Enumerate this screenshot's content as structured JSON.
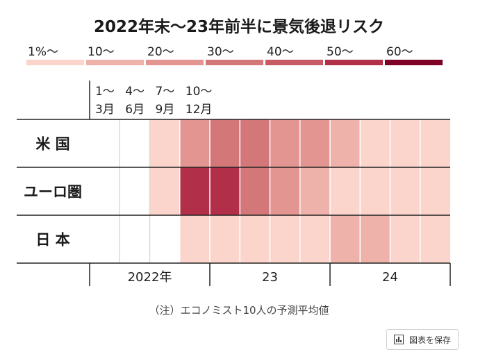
{
  "chart_data": {
    "type": "heatmap",
    "title": "2022年末～23年前半に景気後退リスク",
    "legend": {
      "labels": [
        "1%～",
        "10～",
        "20～",
        "30～",
        "40～",
        "50～",
        "60～"
      ],
      "colors": [
        "#fbd5cb",
        "#efb2aa",
        "#e39592",
        "#d47779",
        "#c85a66",
        "#b22f4a",
        "#7e0226"
      ]
    },
    "quarter_labels": [
      {
        "line1": "1～",
        "line2": "3月"
      },
      {
        "line1": "4～",
        "line2": "6月"
      },
      {
        "line1": "7～",
        "line2": "9月"
      },
      {
        "line1": "10～",
        "line2": "12月"
      }
    ],
    "rows": [
      "米 国",
      "ユーロ圏",
      "日 本"
    ],
    "quarters": [
      "2022Q1",
      "2022Q2",
      "2022Q3",
      "2022Q4",
      "2023Q1",
      "2023Q2",
      "2023Q3",
      "2023Q4",
      "2024Q1",
      "2024Q2",
      "2024Q3",
      "2024Q4"
    ],
    "values": [
      [
        0,
        0,
        1,
        3,
        4,
        4,
        3,
        3,
        2,
        1,
        1,
        1
      ],
      [
        0,
        0,
        1,
        6,
        6,
        4,
        3,
        2,
        1,
        1,
        1,
        1
      ],
      [
        0,
        0,
        0,
        1,
        1,
        1,
        1,
        1,
        2,
        2,
        1,
        1
      ]
    ],
    "year_labels": [
      "2022年",
      "23",
      "24"
    ],
    "note": "（注）エコノミスト10人の予測平均値"
  },
  "save_button": {
    "label": "図表を保存",
    "icon": "bar-chart-icon"
  }
}
